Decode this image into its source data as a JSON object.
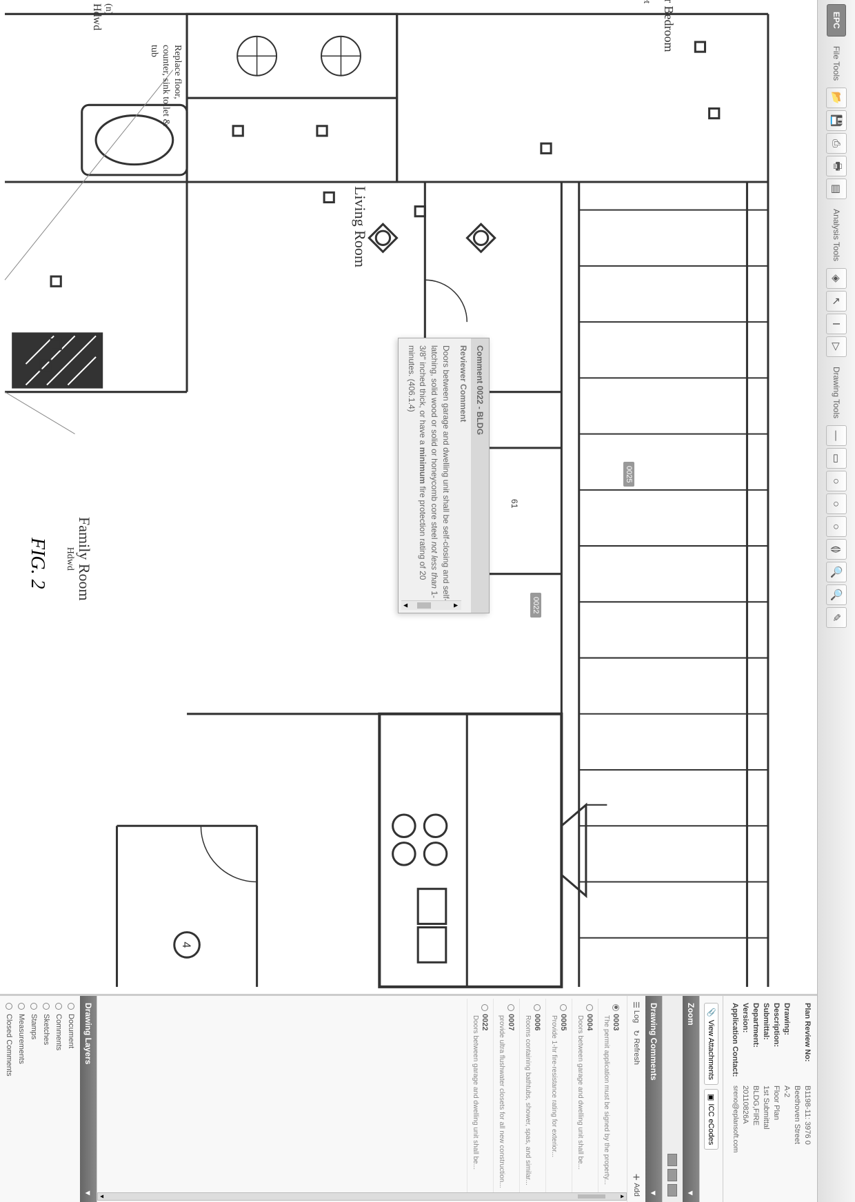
{
  "logo": "EPC",
  "toolbar": {
    "file_label": "File Tools",
    "analysis_label": "Analysis Tools",
    "drawing_label": "Drawing Tools"
  },
  "info": {
    "plan_review_no_label": "Plan Review No:",
    "plan_review_no": "B1198-11: 3976 0",
    "address": "Beethoven Street",
    "drawing_label": "Drawing:",
    "drawing": "A-2",
    "description_label": "Description:",
    "description": "Floor Plan",
    "submittal_label": "Submittal:",
    "submittal": "1st Submittal",
    "department_label": "Department:",
    "department": "BLDG,FIRE",
    "version_label": "Version:",
    "version": "20110826A",
    "contact_label": "Application Contact:",
    "contact": "sreno@eplansoft.com"
  },
  "attachments": {
    "view": "View Attachments",
    "ecodes": "ICC eCodes"
  },
  "panels": {
    "zoom": "Zoom",
    "drawing_comments": "Drawing Comments",
    "drawing_layers": "Drawing Layers"
  },
  "dc_toolbar": {
    "log": "Log",
    "refresh": "Refresh",
    "add": "Add"
  },
  "comments": [
    {
      "id": "0003",
      "text": "The permit application must be signed by the property...",
      "selected": true
    },
    {
      "id": "0004",
      "text": "Doors between garage and dwelling unit shall be...",
      "selected": false
    },
    {
      "id": "0005",
      "text": "Provide 1-hr fire-resistance rating for exterior...",
      "selected": false
    },
    {
      "id": "0006",
      "text": "Rooms containing bathtubs, shower, spas, and similar...",
      "selected": false
    },
    {
      "id": "0007",
      "text": "provide ultra flushwater closets for all new construction...",
      "selected": false
    },
    {
      "id": "0022",
      "text": "Doors between garage and dwelling unit shall be...",
      "selected": false
    }
  ],
  "layers": [
    "Document",
    "Comments",
    "Sketches",
    "Stamps",
    "Measurements",
    "Closed Comments"
  ],
  "popup": {
    "title": "Comment 0022 - BLDG",
    "subtitle": "Reviewer Comment",
    "body_html": "Doors between garage and dwelling unit shall be self-closing and self-latching, solid wood or solid or honeycomb core steel <em>not less than</em> 1-3/8\" inched thick, or have a <b>minimum</b> fire protection rating of 20 minutes. (406.1.4)"
  },
  "callouts": {
    "c0025": "0025",
    "c0022": "0022"
  },
  "rooms": {
    "living": "Living Room",
    "family": "Family Room",
    "family_sub": "Hdwd",
    "master": "Master Bedroom",
    "n_hdwd_n": "(n)",
    "n_hdwd": "Hdwd",
    "bath_note": "Replace floor, counter, sink toilet & tub"
  },
  "figure": "FIG. 2"
}
